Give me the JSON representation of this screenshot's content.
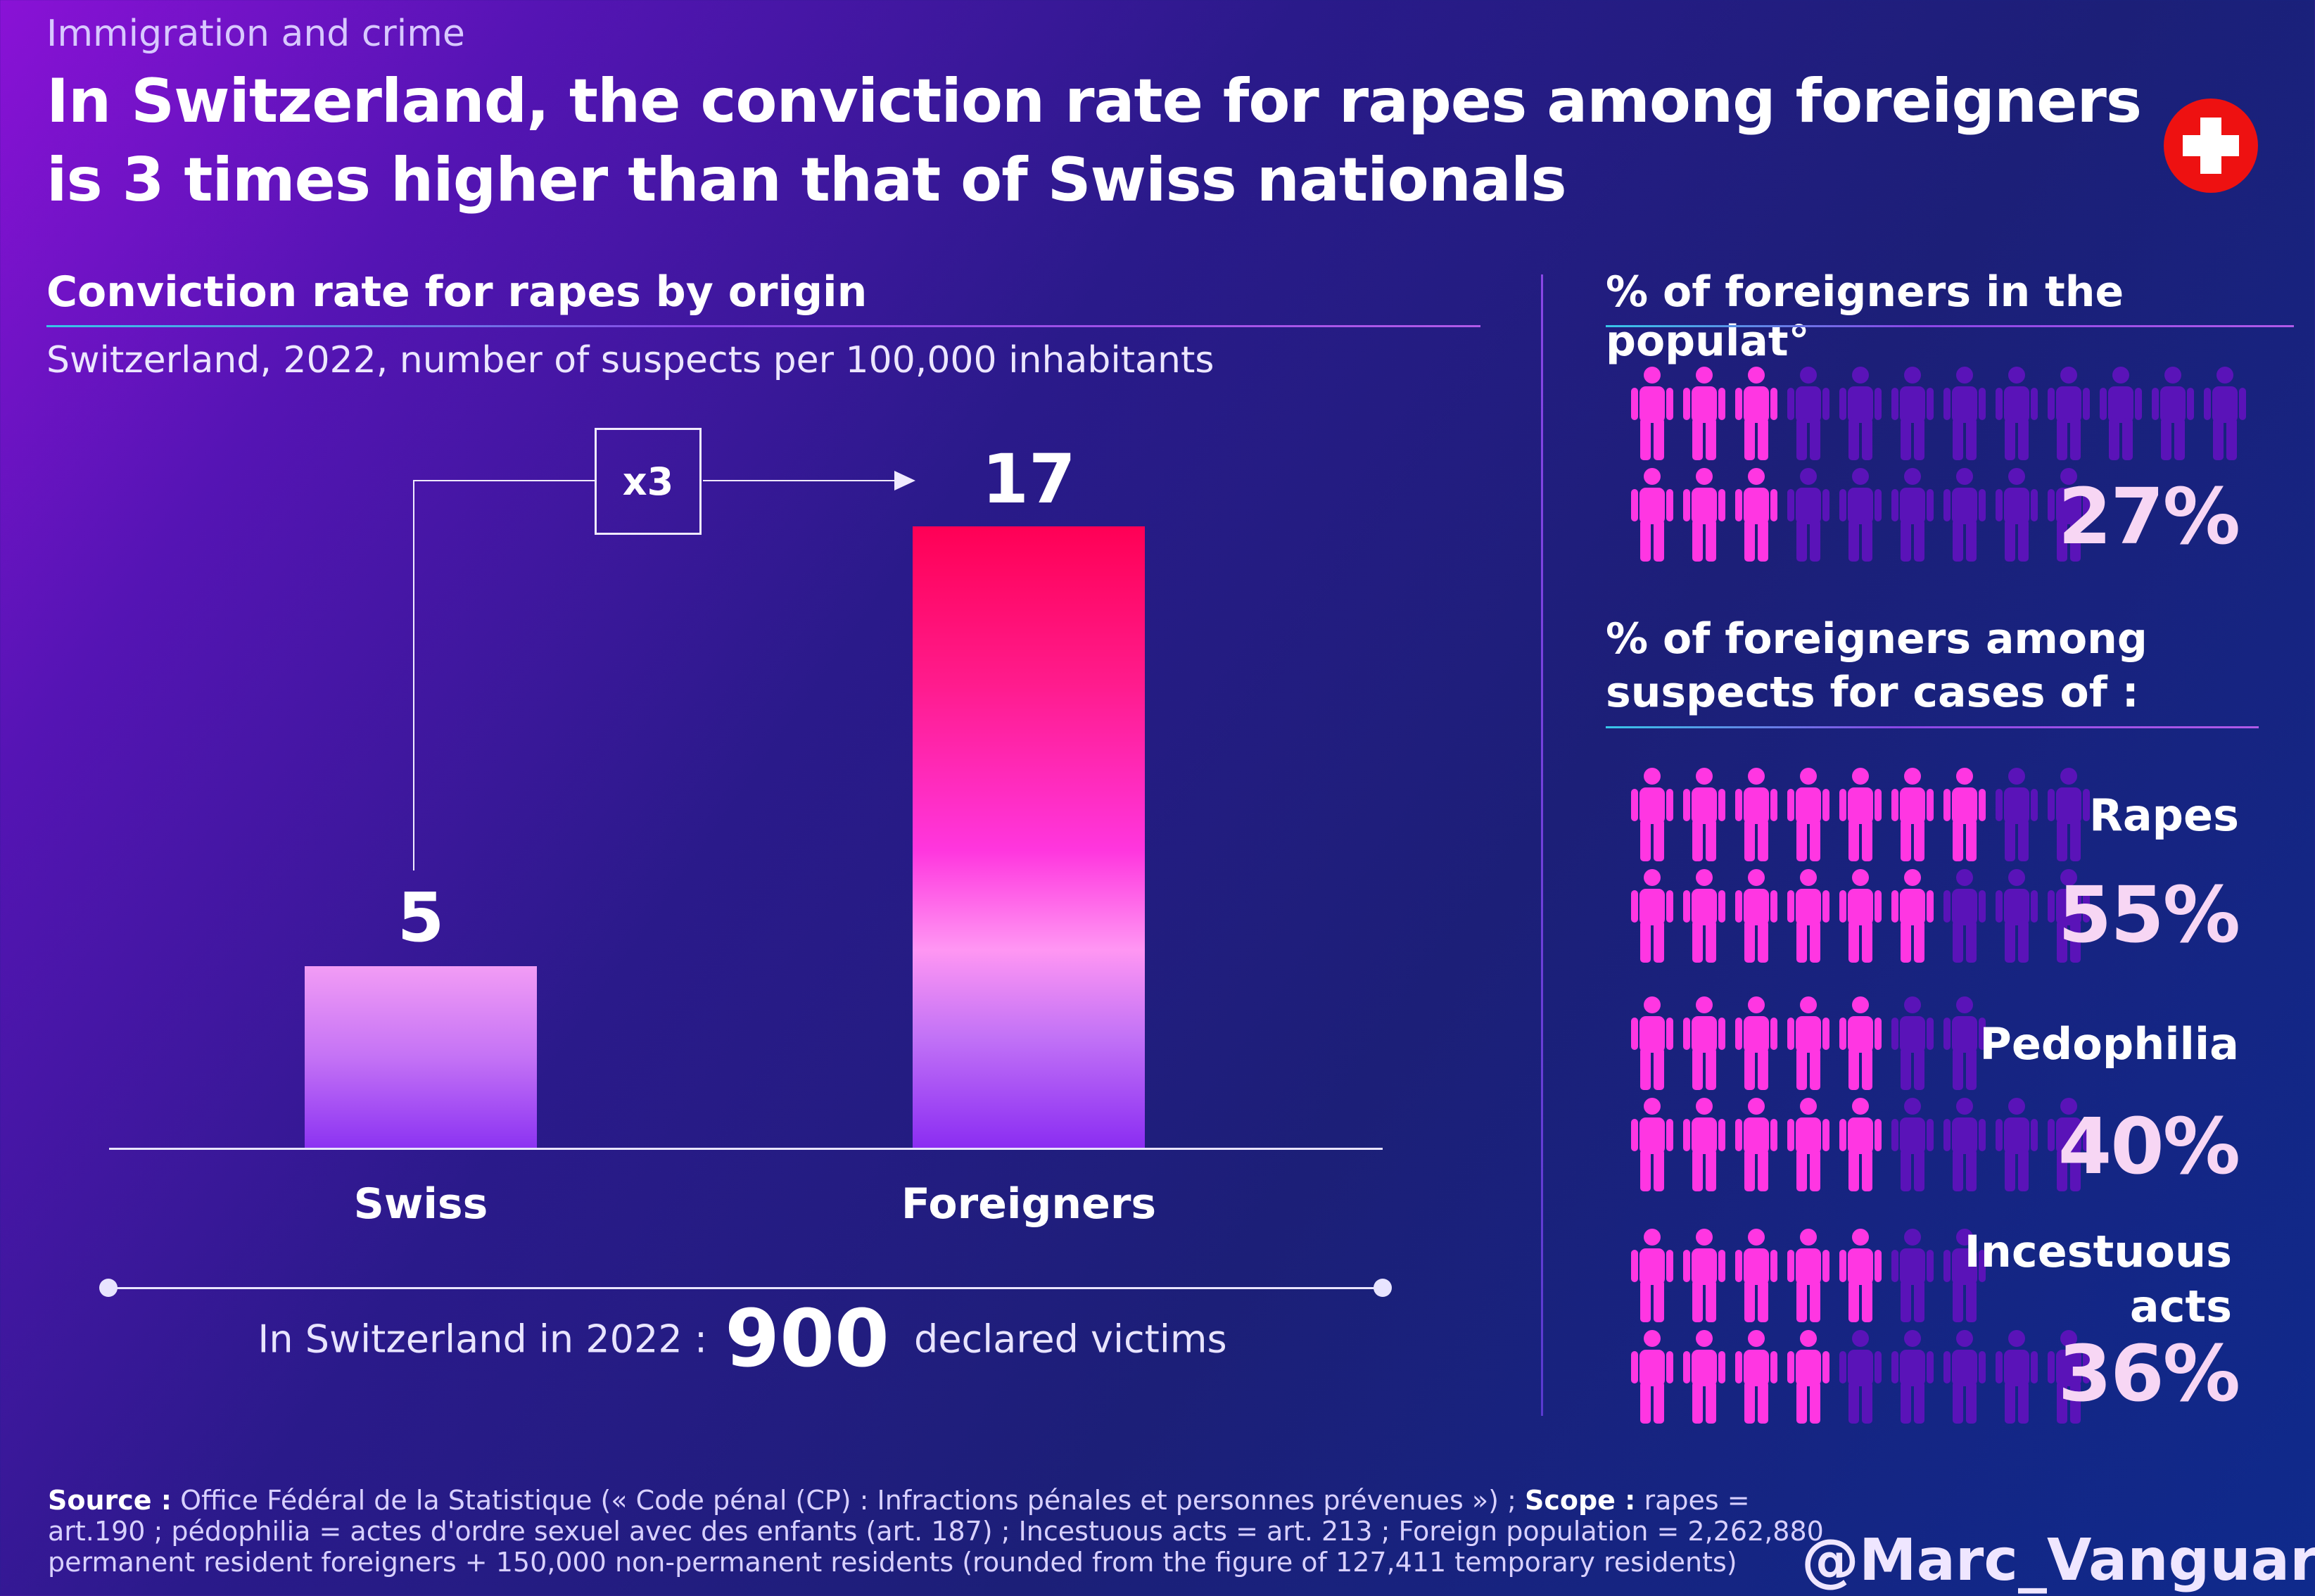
{
  "header": {
    "kicker": "Immigration and crime",
    "title_line1": "In Switzerland, the conviction rate for rapes among foreigners",
    "title_line2": "is 3 times higher than that of Swiss nationals"
  },
  "colors": {
    "figure_active": "#ff36e2",
    "figure_inactive": "#5a13b8",
    "bar_foreign_top": "#ff0055",
    "bar_swiss_top": "#f29cf5",
    "flag_red": "#ee1111"
  },
  "left_panel": {
    "title": "Conviction rate for rapes by origin",
    "subtitle": "Switzerland, 2022, number of suspects per 100,000 inhabitants",
    "multiplier": "x3",
    "victims_prefix": "In Switzerland in 2022 :",
    "victims_value": "900",
    "victims_suffix": "declared victims"
  },
  "chart_data": {
    "type": "bar",
    "categories": [
      "Swiss",
      "Foreigners"
    ],
    "values": [
      5,
      17
    ],
    "value_labels": [
      "5",
      "17"
    ],
    "title": "Conviction rate for rapes by origin",
    "subtitle": "Switzerland, 2022, number of suspects per 100,000 inhabitants",
    "ylim": [
      0,
      17
    ],
    "annotation": "x3",
    "grid": false
  },
  "right_panel": {
    "population_title": "% of foreigners in the populat°",
    "population": {
      "pct_label": "27%",
      "percent": 27,
      "filled": [
        3,
        3
      ]
    },
    "suspects_title_line1": "% of foreigners among",
    "suspects_title_line2": "suspects for cases of :",
    "crimes": [
      {
        "label_lines": [
          "Rapes"
        ],
        "pct_label": "55%",
        "percent": 55,
        "filled": [
          7,
          6
        ]
      },
      {
        "label_lines": [
          "Pedophilia"
        ],
        "pct_label": "40%",
        "percent": 40,
        "filled": [
          5,
          5
        ]
      },
      {
        "label_lines": [
          "Incestuous",
          "acts"
        ],
        "pct_label": "36%",
        "percent": 36,
        "filled": [
          5,
          4
        ]
      }
    ]
  },
  "footer": {
    "source_label": "Source :",
    "source_text": "Office Fédéral de la Statistique (« Code pénal (CP) : Infractions pénales et personnes prévenues ») ;",
    "scope_label": "Scope :",
    "scope_text": "rapes = art.190 ; pédophilia = actes d'ordre sexuel avec des enfants (art. 187) ; Incestuous acts = art. 213 ; Foreign population = 2,262,880 permanent resident foreigners + 150,000 non-permanent residents (rounded from the figure of 127,411 temporary residents)",
    "handle": "@Marc_Vanguard_i"
  }
}
